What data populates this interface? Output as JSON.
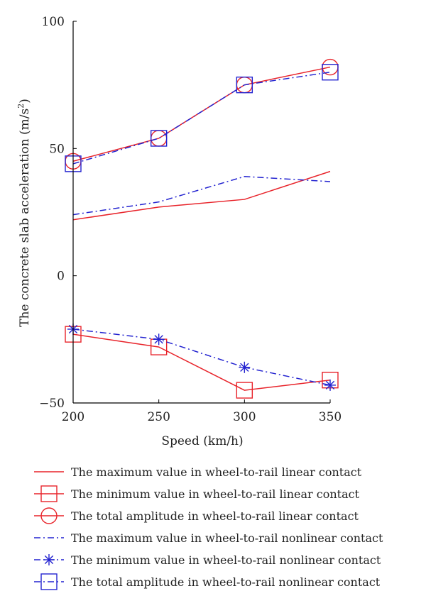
{
  "chart_data": {
    "type": "line",
    "title": "",
    "xlabel": "Speed (km/h)",
    "ylabel_main": "The concrete slab acceleration (m/s",
    "ylabel_sup": "2",
    "ylabel_tail": ")",
    "x": [
      200,
      250,
      300,
      350
    ],
    "xlim": [
      200,
      350
    ],
    "ylim": [
      -50,
      100
    ],
    "x_ticks": [
      "200",
      "250",
      "300",
      "350"
    ],
    "y_ticks": [
      "100",
      "50",
      "0",
      "−50"
    ],
    "grid": false,
    "legend_placement": "below",
    "series": [
      {
        "name": "The maximum value in wheel-to-rail linear contact",
        "values": [
          22,
          27,
          30,
          41
        ],
        "color": "#e8232a",
        "dash": "solid",
        "marker": "none"
      },
      {
        "name": "The minimum value in wheel-to-rail linear contact",
        "values": [
          -23,
          -28,
          -45,
          -41
        ],
        "color": "#e8232a",
        "dash": "solid",
        "marker": "square"
      },
      {
        "name": "The total amplitude in wheel-to-rail linear contact",
        "values": [
          45,
          54,
          75,
          82
        ],
        "color": "#e8232a",
        "dash": "solid",
        "marker": "circle"
      },
      {
        "name": "The maximum value in wheel-to-rail nonlinear contact",
        "values": [
          24,
          29,
          39,
          37
        ],
        "color": "#2323d0",
        "dash": "dashdot",
        "marker": "none"
      },
      {
        "name": "The minimum value in wheel-to-rail nonlinear contact",
        "values": [
          -21,
          -25,
          -36,
          -43
        ],
        "color": "#2323d0",
        "dash": "dashdot",
        "marker": "star"
      },
      {
        "name": "The total amplitude in wheel-to-rail nonlinear contact",
        "values": [
          44,
          54,
          75,
          80
        ],
        "color": "#2323d0",
        "dash": "dashdot",
        "marker": "square"
      }
    ]
  }
}
